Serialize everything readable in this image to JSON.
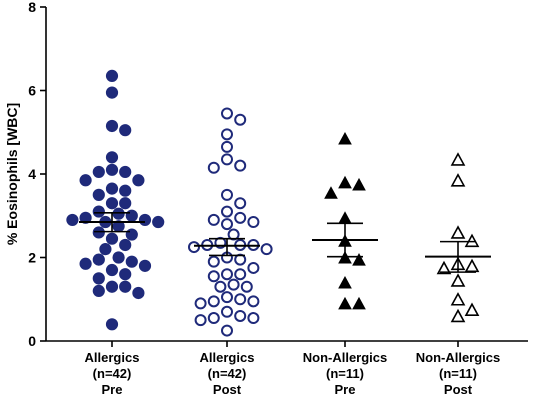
{
  "chart_data": {
    "type": "scatter",
    "ylabel": "% Eosinophils [WBC]",
    "ylim": [
      0,
      8
    ],
    "yticks": [
      0,
      2,
      4,
      6,
      8
    ],
    "grid": false,
    "colors": {
      "filled": "#1f2a7a",
      "open_stroke": "#1f2a7a",
      "triangle": "#000000"
    },
    "series": [
      {
        "category": [
          "Allergics",
          "(n=42)",
          "Pre"
        ],
        "marker": "circle-filled",
        "mean": 2.85,
        "sem_low": 2.62,
        "sem_high": 3.07,
        "values": [
          6.35,
          5.95,
          5.15,
          5.05,
          4.4,
          4.1,
          4.05,
          4.05,
          3.85,
          3.85,
          3.65,
          3.6,
          3.5,
          3.3,
          3.3,
          3.1,
          3.05,
          3.0,
          2.95,
          2.9,
          2.9,
          2.85,
          2.85,
          2.75,
          2.6,
          2.55,
          2.45,
          2.3,
          2.2,
          2.0,
          1.95,
          1.9,
          1.85,
          1.8,
          1.7,
          1.6,
          1.5,
          1.3,
          1.3,
          1.2,
          1.15,
          0.4
        ]
      },
      {
        "category": [
          "Allergics",
          "(n=42)",
          "Post"
        ],
        "marker": "circle-open",
        "mean": 2.28,
        "sem_low": 2.05,
        "sem_high": 2.45,
        "values": [
          5.45,
          5.3,
          4.95,
          4.65,
          4.35,
          4.2,
          4.15,
          3.5,
          3.3,
          3.1,
          2.95,
          2.9,
          2.85,
          2.8,
          2.55,
          2.35,
          2.3,
          2.3,
          2.3,
          2.25,
          2.2,
          2.0,
          1.95,
          1.9,
          1.75,
          1.6,
          1.6,
          1.55,
          1.35,
          1.3,
          1.3,
          1.05,
          1.0,
          0.95,
          0.95,
          0.9,
          0.7,
          0.6,
          0.55,
          0.55,
          0.5,
          0.25
        ]
      },
      {
        "category": [
          "Non-Allergics",
          "(n=11)",
          "Pre"
        ],
        "marker": "triangle-filled",
        "mean": 2.42,
        "sem_low": 2.02,
        "sem_high": 2.82,
        "values": [
          4.85,
          3.8,
          3.75,
          3.55,
          2.95,
          2.4,
          2.0,
          1.95,
          1.4,
          0.9,
          0.9
        ]
      },
      {
        "category": [
          "Non-Allergics",
          "(n=11)",
          "Post"
        ],
        "marker": "triangle-open",
        "mean": 2.02,
        "sem_low": 1.65,
        "sem_high": 2.38,
        "values": [
          4.35,
          3.85,
          2.6,
          2.4,
          1.85,
          1.8,
          1.75,
          1.45,
          1.0,
          0.75,
          0.6
        ]
      }
    ]
  }
}
